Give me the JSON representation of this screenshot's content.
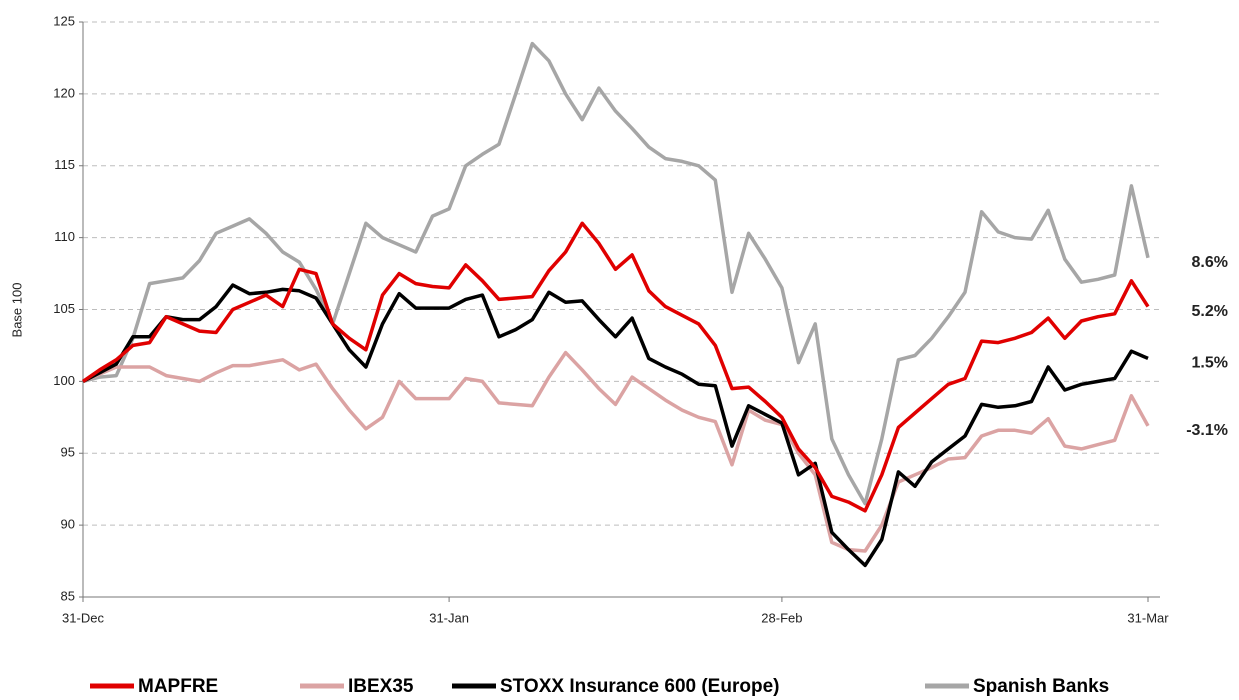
{
  "chart_data": {
    "type": "line",
    "y_label": "Base 100",
    "ylim": [
      85,
      125
    ],
    "yticks": [
      85,
      90,
      95,
      100,
      105,
      110,
      115,
      120,
      125
    ],
    "grid": true,
    "legend": "bottom",
    "categories": [
      "31-Dec",
      null,
      null,
      null,
      null,
      null,
      null,
      null,
      null,
      null,
      null,
      null,
      null,
      null,
      null,
      null,
      null,
      null,
      null,
      null,
      null,
      null,
      "31-Jan",
      null,
      null,
      null,
      null,
      null,
      null,
      null,
      null,
      null,
      null,
      null,
      null,
      null,
      null,
      null,
      null,
      null,
      null,
      null,
      "28-Feb",
      null,
      null,
      null,
      null,
      null,
      null,
      null,
      null,
      null,
      null,
      null,
      null,
      null,
      null,
      null,
      null,
      null,
      null,
      null,
      null,
      null,
      "31-Mar"
    ],
    "series": [
      {
        "name": "MAPFRE",
        "color": "#e00000",
        "end_label": "5.2%",
        "values": [
          100,
          100.8,
          101.5,
          102.5,
          102.7,
          104.5,
          104,
          103.5,
          103.4,
          105,
          105.5,
          106,
          105.2,
          107.8,
          107.5,
          104,
          103,
          102.2,
          106,
          107.5,
          106.8,
          106.6,
          106.5,
          108.1,
          107,
          105.7,
          105.8,
          105.9,
          107.7,
          109,
          111,
          109.6,
          107.8,
          108.8,
          106.3,
          105.2,
          104.6,
          104,
          102.5,
          99.5,
          99.6,
          98.6,
          97.5,
          95.3,
          94,
          92,
          91.6,
          91,
          93.5,
          96.8,
          97.8,
          98.8,
          99.8,
          100.2,
          102.8,
          102.7,
          103,
          103.4,
          104.4,
          103,
          104.2,
          104.5,
          104.7,
          107,
          105.2
        ]
      },
      {
        "name": "IBEX35",
        "color": "#dba3a3",
        "end_label": "-3.1%",
        "values": [
          100,
          100.5,
          101,
          101,
          101,
          100.4,
          100.2,
          100,
          100.6,
          101.1,
          101.1,
          101.3,
          101.5,
          100.8,
          101.2,
          99.5,
          98,
          96.7,
          97.5,
          100,
          98.8,
          98.8,
          98.8,
          100.2,
          100,
          98.5,
          98.4,
          98.3,
          100.3,
          102,
          100.8,
          99.5,
          98.4,
          100.3,
          99.5,
          98.7,
          98,
          97.5,
          97.2,
          94.2,
          98,
          97.3,
          97,
          95,
          93.5,
          88.8,
          88.3,
          88.2,
          90,
          93,
          93.5,
          94,
          94.6,
          94.7,
          96.2,
          96.6,
          96.6,
          96.4,
          97.4,
          95.5,
          95.3,
          95.6,
          95.9,
          99,
          96.9
        ]
      },
      {
        "name": "STOXX Insurance 600 (Europe)",
        "color": "#000000",
        "end_label": "1.5%",
        "values": [
          100,
          100.6,
          101.2,
          103.1,
          103.1,
          104.5,
          104.3,
          104.3,
          105.2,
          106.7,
          106.1,
          106.2,
          106.4,
          106.3,
          105.8,
          104,
          102.2,
          101,
          104,
          106.1,
          105.1,
          105.1,
          105.1,
          105.7,
          106,
          103.1,
          103.6,
          104.3,
          106.2,
          105.5,
          105.6,
          104.3,
          103.1,
          104.4,
          101.6,
          101,
          100.5,
          99.8,
          99.7,
          95.5,
          98.3,
          97.7,
          97.1,
          93.5,
          94.3,
          89.5,
          88.3,
          87.2,
          89,
          93.7,
          92.7,
          94.4,
          95.3,
          96.2,
          98.4,
          98.2,
          98.3,
          98.6,
          101,
          99.4,
          99.8,
          100,
          100.2,
          102.1,
          101.6
        ]
      },
      {
        "name": "Spanish Banks",
        "color": "#a6a6a6",
        "end_label": "8.6%",
        "values": [
          100,
          100.3,
          100.4,
          103,
          106.8,
          107,
          107.2,
          108.4,
          110.3,
          110.8,
          111.3,
          110.3,
          109,
          108.3,
          106.4,
          104,
          107.5,
          111,
          110,
          109.5,
          109,
          111.5,
          112,
          115,
          115.8,
          116.5,
          120,
          123.5,
          122.3,
          120,
          118.2,
          120.4,
          118.8,
          117.6,
          116.3,
          115.5,
          115.3,
          115,
          114,
          106.2,
          110.3,
          108.5,
          106.5,
          101.3,
          104,
          96,
          93.5,
          91.5,
          96,
          101.5,
          101.8,
          103,
          104.5,
          106.2,
          111.8,
          110.4,
          110,
          109.9,
          111.9,
          108.5,
          106.9,
          107.1,
          107.4,
          113.6,
          108.6
        ]
      }
    ]
  }
}
